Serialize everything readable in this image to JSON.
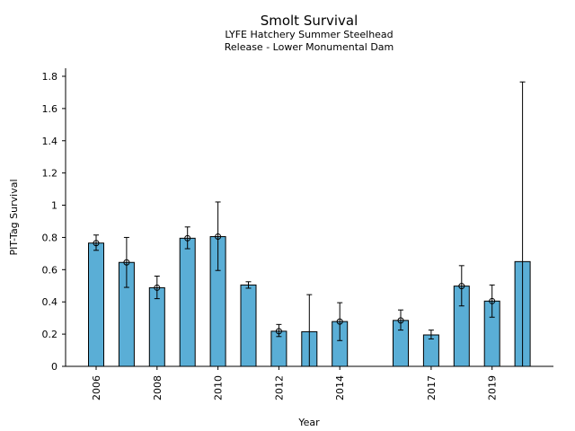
{
  "chart_data": {
    "type": "bar",
    "title": "Smolt Survival",
    "subtitle_lines": [
      "LYFE Hatchery Summer Steelhead",
      "Release - Lower Monumental Dam"
    ],
    "xlabel": "Year",
    "ylabel": "PIT-Tag Survival",
    "ylim": [
      0,
      1.85
    ],
    "y_ticks": [
      0,
      0.2,
      0.4,
      0.6,
      0.8,
      1,
      1.2,
      1.4,
      1.6,
      1.8
    ],
    "y_tick_labels": [
      "0",
      "0.2",
      "0.4",
      "0.6",
      "0.8",
      "1",
      "1.2",
      "1.4",
      "1.6",
      "1.8"
    ],
    "x_tick_labels": [
      "2006",
      "2008",
      "2010",
      "2012",
      "2014",
      "2017",
      "2019"
    ],
    "grid": false,
    "bar_color": "#5aaed6",
    "points": [
      {
        "year": 2006,
        "value": 0.765,
        "ci_low": 0.72,
        "ci_high": 0.815,
        "marker": true
      },
      {
        "year": 2007,
        "value": 0.645,
        "ci_low": 0.49,
        "ci_high": 0.8,
        "marker": true
      },
      {
        "year": 2008,
        "value": 0.488,
        "ci_low": 0.42,
        "ci_high": 0.56,
        "marker": true
      },
      {
        "year": 2009,
        "value": 0.795,
        "ci_low": 0.73,
        "ci_high": 0.865,
        "marker": true
      },
      {
        "year": 2010,
        "value": 0.805,
        "ci_low": 0.595,
        "ci_high": 1.02,
        "marker": true
      },
      {
        "year": 2011,
        "value": 0.505,
        "ci_low": 0.485,
        "ci_high": 0.525,
        "marker": false
      },
      {
        "year": 2012,
        "value": 0.218,
        "ci_low": 0.185,
        "ci_high": 0.26,
        "marker": true
      },
      {
        "year": 2013,
        "value": 0.215,
        "ci_low": 0.0,
        "ci_high": 0.445,
        "marker": false
      },
      {
        "year": 2014,
        "value": 0.278,
        "ci_low": 0.16,
        "ci_high": 0.395,
        "marker": true
      },
      {
        "year": 2016,
        "value": 0.285,
        "ci_low": 0.225,
        "ci_high": 0.35,
        "marker": true
      },
      {
        "year": 2017,
        "value": 0.195,
        "ci_low": 0.17,
        "ci_high": 0.225,
        "marker": false
      },
      {
        "year": 2018,
        "value": 0.498,
        "ci_low": 0.375,
        "ci_high": 0.625,
        "marker": true
      },
      {
        "year": 2019,
        "value": 0.405,
        "ci_low": 0.305,
        "ci_high": 0.505,
        "marker": true
      },
      {
        "year": 2020,
        "value": 0.65,
        "ci_low": 0.0,
        "ci_high": 1.765,
        "marker": false
      }
    ]
  }
}
